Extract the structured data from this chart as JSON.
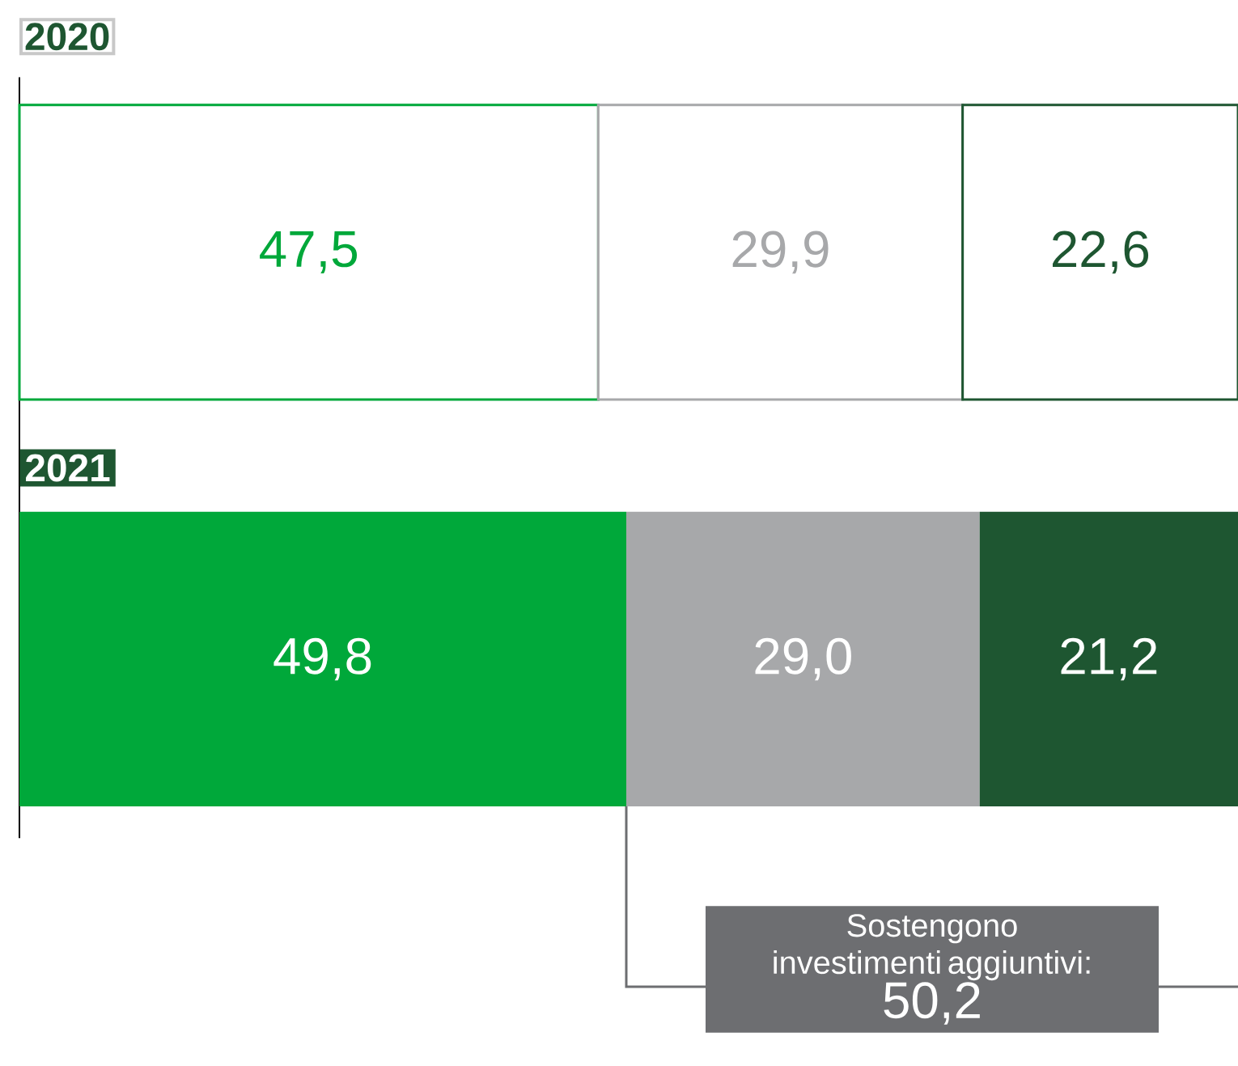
{
  "chart_data": {
    "type": "bar",
    "orientation": "horizontal",
    "stacked": true,
    "categories": [
      "2020",
      "2021"
    ],
    "xlim": [
      0,
      100
    ],
    "tick_labels": false,
    "series": [
      {
        "color": "#00a83a",
        "values": [
          47.5,
          49.8
        ],
        "value_labels": [
          "47,5",
          "49,8"
        ]
      },
      {
        "color": "#a7a8aa",
        "values": [
          29.9,
          29.0
        ],
        "value_labels": [
          "29,9",
          "29,0"
        ]
      },
      {
        "color": "#1e5631",
        "values": [
          22.6,
          21.2
        ],
        "value_labels": [
          "22,6",
          "21,2"
        ]
      }
    ],
    "annotations": [
      "Sostengono investimenti aggiuntivi:",
      "50,2"
    ]
  }
}
